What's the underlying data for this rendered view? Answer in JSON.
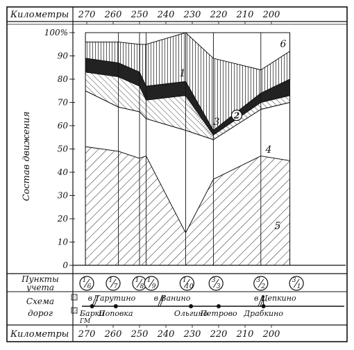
{
  "chart_data": {
    "type": "area",
    "title": "",
    "ylabel": "Состав движения",
    "ylim": [
      0,
      100
    ],
    "y_ticks": [
      "0",
      "10",
      "20",
      "30",
      "40",
      "50",
      "60",
      "70",
      "80",
      "90",
      "100%"
    ],
    "x_axis": {
      "label": "Километры",
      "ticks": [
        "270",
        "260",
        "250",
        "240",
        "230",
        "220",
        "210",
        "200"
      ],
      "reversed": true
    },
    "x": [
      270.5,
      258,
      250,
      247.5,
      232.5,
      222,
      204,
      193
    ],
    "layers": [
      {
        "label": "5",
        "top": [
          51,
          49,
          46,
          47,
          14,
          37,
          47,
          45
        ]
      },
      {
        "label": "4",
        "top": [
          75,
          68,
          66,
          63,
          58,
          54,
          67,
          70
        ]
      },
      {
        "label": "3",
        "top": [
          83,
          81,
          77,
          71,
          73,
          56,
          70,
          73
        ]
      },
      {
        "label": "2",
        "top": [
          89,
          87,
          83,
          77,
          79,
          58,
          74,
          80
        ]
      },
      {
        "label": "1",
        "top": [
          96,
          96,
          95,
          95,
          100,
          89,
          84,
          92
        ]
      },
      {
        "label": "6",
        "top": [
          100,
          100,
          100,
          100,
          100,
          100,
          100,
          100
        ]
      }
    ],
    "counting_points": {
      "label": "Пункты учета",
      "items": [
        {
          "x": 270,
          "top": "1",
          "bottom": "6"
        },
        {
          "x": 260,
          "top": "1",
          "bottom": "7"
        },
        {
          "x": 250,
          "top": "1",
          "bottom": "8"
        },
        {
          "x": 245.5,
          "top": "1",
          "bottom": "9"
        },
        {
          "x": 232,
          "top": "1",
          "bottom": "10"
        },
        {
          "x": 221,
          "top": "3",
          "bottom": "3"
        },
        {
          "x": 204,
          "top": "3",
          "bottom": "2"
        },
        {
          "x": 190.5,
          "top": "3",
          "bottom": "1"
        }
      ]
    },
    "road_scheme": {
      "label": "Схема дорог",
      "branches_up": [
        {
          "x": 268,
          "text": "в Тарутино"
        },
        {
          "x": 243,
          "text": "в Ванино"
        },
        {
          "x": 205,
          "text": "в Цепкино"
        }
      ],
      "stations": [
        {
          "x": 268,
          "text": "Барки",
          "sub": "ГМ"
        },
        {
          "x": 259,
          "text": "Поповка"
        },
        {
          "x": 230.5,
          "text": "Ольгино"
        },
        {
          "x": 220,
          "text": "Петрово"
        },
        {
          "x": 203,
          "text": "Драбкино"
        }
      ]
    }
  }
}
